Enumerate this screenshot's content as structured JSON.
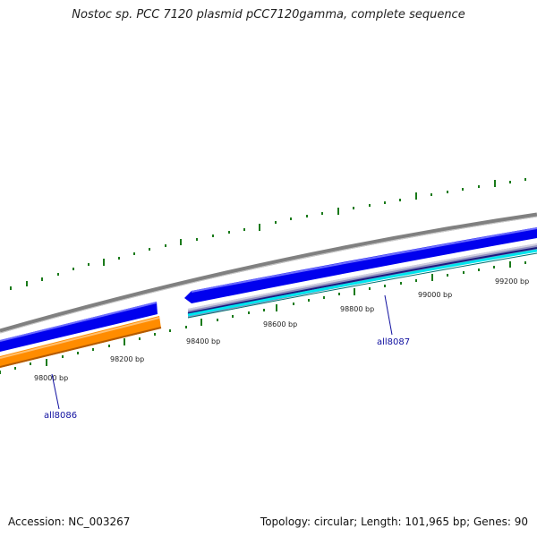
{
  "title": "Nostoc sp. PCC 7120 plasmid pCC7120gamma, complete sequence",
  "footer": {
    "accession": "Accession: NC_003267",
    "summary": "Topology: circular; Length: 101,965 bp; Genes: 90"
  },
  "colors": {
    "backbone": "#808080",
    "cds_forward": "#0000ee",
    "cds_reverse_orange": "#ff8c00",
    "cds_reverse_cyan": "#00e5ee",
    "gc_tick": "#1a7a1a"
  },
  "ticks": [
    {
      "label": "98000 bp"
    },
    {
      "label": "98200 bp"
    },
    {
      "label": "98400 bp"
    },
    {
      "label": "98600 bp"
    },
    {
      "label": "98800 bp"
    },
    {
      "label": "99000 bp"
    },
    {
      "label": "99200 bp"
    }
  ],
  "genes": [
    {
      "label": "all8086"
    },
    {
      "label": "all8087"
    }
  ]
}
